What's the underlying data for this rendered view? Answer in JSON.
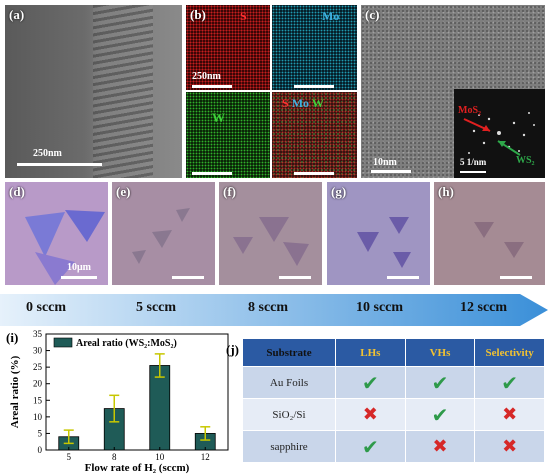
{
  "panels": {
    "a": {
      "label": "(a)",
      "scale": "250nm"
    },
    "b": {
      "label": "(b)",
      "S": "S",
      "Mo": "Mo",
      "W": "W",
      "scale": "250nm"
    },
    "c": {
      "label": "(c)",
      "scale": "10nm",
      "fft_scale": "5 1/nm",
      "MoS2": "MoS₂",
      "WS2": "WS₂"
    },
    "d": {
      "label": "(d)",
      "scale": "10μm"
    },
    "e": {
      "label": "(e)"
    },
    "f": {
      "label": "(f)"
    },
    "g": {
      "label": "(g)"
    },
    "h": {
      "label": "(h)"
    }
  },
  "flow": [
    "0 sccm",
    "5 sccm",
    "8 sccm",
    "10 sccm",
    "12 sccm"
  ],
  "chart": {
    "label": "(i)",
    "legend": "Areal ratio (WS₂:MoS₂)",
    "ylabel": "Areal ratio (%)",
    "xlabel": "Flow rate of H₂ (sccm)",
    "yticks": [
      "0",
      "5",
      "10",
      "15",
      "20",
      "25",
      "30",
      "35"
    ],
    "colors": {
      "bar_fill": "#1f5b57",
      "error": "#c7c700"
    }
  },
  "chart_data": {
    "type": "bar",
    "categories": [
      "5",
      "8",
      "10",
      "12"
    ],
    "values": [
      4,
      12.5,
      25.5,
      5
    ],
    "errors": [
      2,
      4,
      3.5,
      2
    ],
    "ylim": [
      0,
      35
    ],
    "ylabel": "Areal ratio (%)",
    "xlabel": "Flow rate of H₂ (sccm)"
  },
  "table": {
    "label": "(j)",
    "headers": [
      "Substrate",
      "LHs",
      "VHs",
      "Selectivity"
    ],
    "rows": [
      {
        "name": "Au Foils",
        "cells": [
          "check",
          "check",
          "check"
        ]
      },
      {
        "name": "SiO₂/Si",
        "cells": [
          "cross",
          "check",
          "cross"
        ]
      },
      {
        "name": "sapphire",
        "cells": [
          "check",
          "cross",
          "cross"
        ]
      }
    ],
    "colors": {
      "header": "#2b5aa3",
      "check": "#2e9a4a",
      "cross": "#d62828"
    }
  }
}
